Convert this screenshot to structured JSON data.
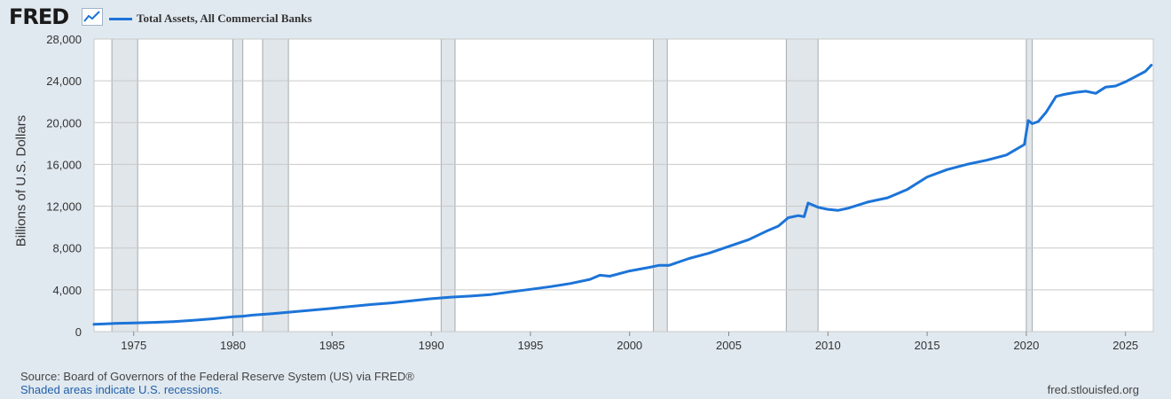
{
  "header": {
    "logo_text": "FRED",
    "logo_icon": "line-chart-icon",
    "legend_label": "Total Assets, All Commercial Banks",
    "series_color": "#1c74d8"
  },
  "footer": {
    "source": "Source: Board of Governors of the Federal Reserve System (US) via FRED®",
    "recession_note": "Shaded areas indicate U.S. recessions.",
    "site": "fred.stlouisfed.org"
  },
  "chart_data": {
    "type": "line",
    "title": "",
    "xlabel": "",
    "ylabel": "Billions of U.S. Dollars",
    "xlim": [
      1973.0,
      2026.4
    ],
    "ylim": [
      0,
      28000
    ],
    "yticks": [
      0,
      4000,
      8000,
      12000,
      16000,
      20000,
      24000,
      28000
    ],
    "ytick_labels": [
      "0",
      "4,000",
      "8,000",
      "12,000",
      "16,000",
      "20,000",
      "24,000",
      "28,000"
    ],
    "xticks": [
      1975,
      1980,
      1985,
      1990,
      1995,
      2000,
      2005,
      2010,
      2015,
      2020,
      2025
    ],
    "xtick_labels": [
      "1975",
      "1980",
      "1985",
      "1990",
      "1995",
      "2000",
      "2005",
      "2010",
      "2015",
      "2020",
      "2025"
    ],
    "grid": true,
    "recessions": [
      [
        1973.9,
        1975.2
      ],
      [
        1980.0,
        1980.5
      ],
      [
        1981.5,
        1982.8
      ],
      [
        1990.5,
        1991.2
      ],
      [
        2001.2,
        2001.9
      ],
      [
        2007.9,
        2009.5
      ],
      [
        2020.0,
        2020.3
      ]
    ],
    "series": [
      {
        "name": "Total Assets, All Commercial Banks",
        "x": [
          1973.0,
          1974.0,
          1975.0,
          1976.0,
          1977.0,
          1978.0,
          1979.0,
          1980.0,
          1980.5,
          1981.0,
          1982.0,
          1983.0,
          1984.0,
          1985.0,
          1986.0,
          1987.0,
          1988.0,
          1989.0,
          1990.0,
          1991.0,
          1992.0,
          1993.0,
          1994.0,
          1995.0,
          1996.0,
          1997.0,
          1998.0,
          1998.5,
          1999.0,
          2000.0,
          2001.0,
          2001.5,
          2002.0,
          2003.0,
          2004.0,
          2005.0,
          2006.0,
          2007.0,
          2007.5,
          2008.0,
          2008.5,
          2008.8,
          2009.0,
          2009.5,
          2010.0,
          2010.5,
          2011.0,
          2012.0,
          2013.0,
          2014.0,
          2015.0,
          2016.0,
          2017.0,
          2018.0,
          2019.0,
          2019.9,
          2020.1,
          2020.3,
          2020.6,
          2021.0,
          2021.5,
          2021.9,
          2022.5,
          2023.0,
          2023.5,
          2024.0,
          2024.5,
          2025.0,
          2025.5,
          2026.0,
          2026.3
        ],
        "y": [
          700,
          780,
          830,
          880,
          960,
          1080,
          1230,
          1420,
          1480,
          1580,
          1720,
          1880,
          2060,
          2230,
          2420,
          2600,
          2750,
          2950,
          3150,
          3300,
          3400,
          3550,
          3800,
          4050,
          4300,
          4600,
          5000,
          5400,
          5300,
          5800,
          6150,
          6350,
          6350,
          7000,
          7500,
          8150,
          8800,
          9700,
          10100,
          10900,
          11100,
          11000,
          12300,
          11900,
          11700,
          11600,
          11800,
          12400,
          12800,
          13600,
          14800,
          15500,
          16000,
          16400,
          16900,
          17900,
          20200,
          19900,
          20100,
          21000,
          22500,
          22700,
          22900,
          23000,
          22800,
          23400,
          23500,
          23900,
          24400,
          24900,
          25500
        ]
      }
    ]
  }
}
